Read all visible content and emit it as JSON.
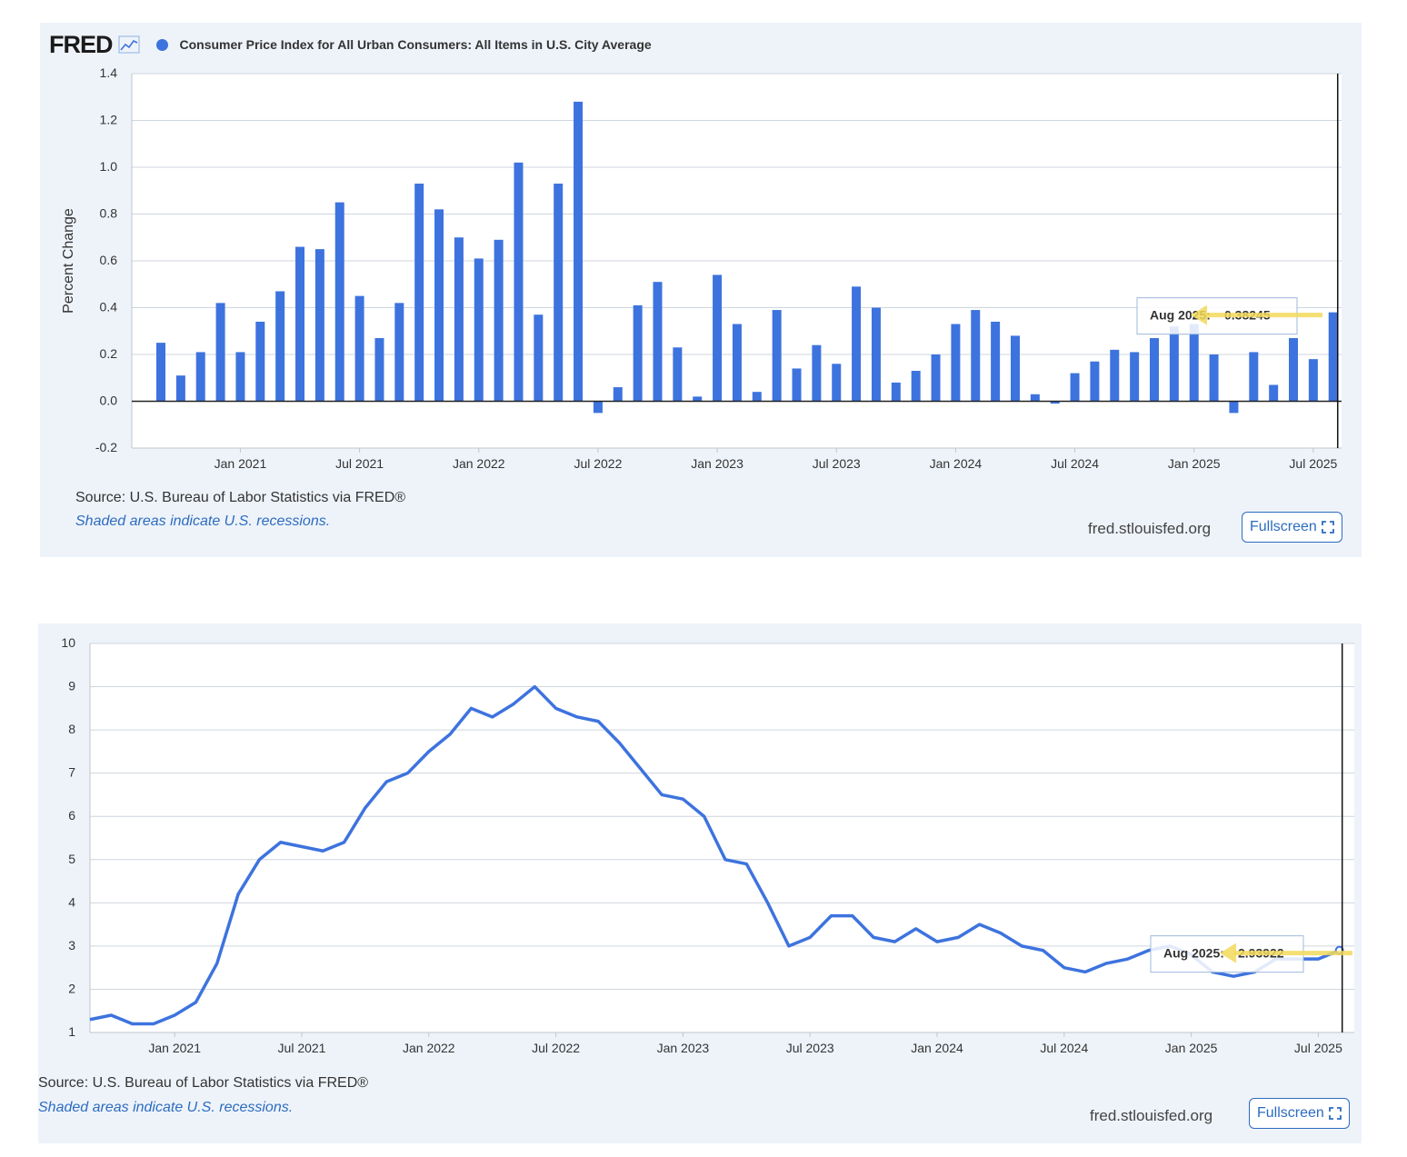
{
  "panels": [
    {
      "header": {
        "logo": "FRED",
        "logo_icon": "line-graph-icon",
        "series_title": "Consumer Price Index for All Urban Consumers: All Items in U.S. City Average"
      },
      "footer": {
        "source": "Source: U.S. Bureau of Labor Statistics via FRED®",
        "note": "Shaded areas indicate U.S. recessions.",
        "site": "fred.stlouisfed.org",
        "fullscreen_label": "Fullscreen",
        "fullscreen_icon": "expand-icon"
      }
    },
    {
      "footer": {
        "source": "Source: U.S. Bureau of Labor Statistics via FRED®",
        "note": "Shaded areas indicate U.S. recessions.",
        "site": "fred.stlouisfed.org",
        "fullscreen_label": "Fullscreen",
        "fullscreen_icon": "expand-icon"
      }
    }
  ],
  "colors": {
    "series": "#3d73de",
    "panel_bg": "#eef3fa",
    "tooltip_arrow": "#f2d95a",
    "link": "#2d6cbf"
  },
  "chart_data": [
    {
      "type": "bar",
      "title": "Consumer Price Index for All Urban Consumers: All Items in U.S. City Average",
      "ylabel": "Percent Change",
      "ylim": [
        -0.2,
        1.4
      ],
      "yticks": [
        "1.4",
        "1.2",
        "1.0",
        "0.8",
        "0.6",
        "0.4",
        "0.2",
        "0.0",
        "-0.2"
      ],
      "xticks": [
        "Jan 2021",
        "Jul 2021",
        "Jan 2022",
        "Jul 2022",
        "Jan 2023",
        "Jul 2023",
        "Jan 2024",
        "Jul 2024",
        "Jan 2025",
        "Jul 2025"
      ],
      "x_start": "Sep 2020",
      "x_end": "Aug 2025",
      "values": [
        0.25,
        0.11,
        0.21,
        0.42,
        0.21,
        0.34,
        0.47,
        0.66,
        0.65,
        0.85,
        0.45,
        0.27,
        0.42,
        0.93,
        0.82,
        0.7,
        0.61,
        0.69,
        1.02,
        0.37,
        0.93,
        1.28,
        -0.05,
        0.06,
        0.41,
        0.51,
        0.23,
        0.02,
        0.54,
        0.33,
        0.04,
        0.39,
        0.14,
        0.24,
        0.16,
        0.49,
        0.4,
        0.08,
        0.13,
        0.2,
        0.33,
        0.39,
        0.34,
        0.28,
        0.03,
        -0.01,
        0.12,
        0.17,
        0.22,
        0.21,
        0.27,
        0.32,
        0.33,
        0.2,
        -0.05,
        0.21,
        0.07,
        0.27,
        0.18,
        0.38
      ],
      "tooltip": {
        "label": "Aug 2025:",
        "value": "0.38245"
      },
      "grid": true
    },
    {
      "type": "line",
      "ylim": [
        1,
        10
      ],
      "yticks": [
        "10",
        "9",
        "8",
        "7",
        "6",
        "5",
        "4",
        "3",
        "2",
        "1"
      ],
      "xticks": [
        "Jan 2021",
        "Jul 2021",
        "Jan 2022",
        "Jul 2022",
        "Jan 2023",
        "Jul 2023",
        "Jan 2024",
        "Jul 2024",
        "Jan 2025",
        "Jul 2025"
      ],
      "x_start": "Sep 2020",
      "x_end": "Aug 2025",
      "values": [
        1.3,
        1.4,
        1.2,
        1.2,
        1.4,
        1.7,
        2.6,
        4.2,
        5.0,
        5.4,
        5.3,
        5.2,
        5.4,
        6.2,
        6.8,
        7.0,
        7.5,
        7.9,
        8.5,
        8.3,
        8.6,
        9.0,
        8.5,
        8.3,
        8.2,
        7.7,
        7.1,
        6.5,
        6.4,
        6.0,
        5.0,
        4.9,
        4.0,
        3.0,
        3.2,
        3.7,
        3.7,
        3.2,
        3.1,
        3.4,
        3.1,
        3.2,
        3.5,
        3.3,
        3.0,
        2.9,
        2.5,
        2.4,
        2.6,
        2.7,
        2.9,
        3.0,
        2.8,
        2.4,
        2.3,
        2.4,
        2.7,
        2.7,
        2.7,
        2.9
      ],
      "tooltip": {
        "label": "Aug 2025:",
        "value": "2.93922"
      },
      "grid": true
    }
  ]
}
